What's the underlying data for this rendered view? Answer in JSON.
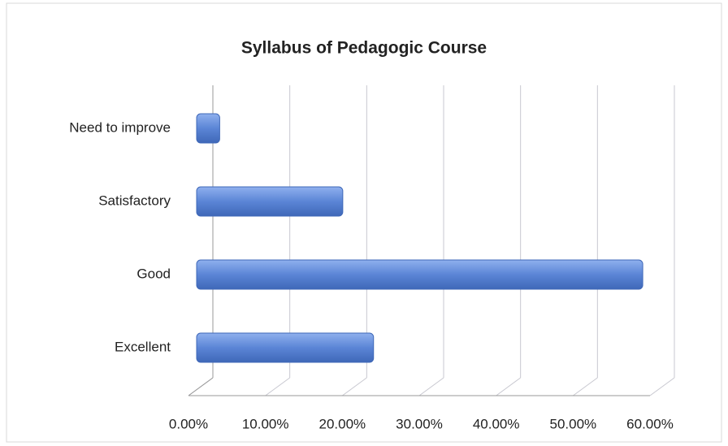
{
  "chart_data": {
    "type": "bar",
    "orientation": "horizontal",
    "title": "Syllabus of Pedagogic Course",
    "categories": [
      "Excellent",
      "Good",
      "Satisfactory",
      "Need to improve"
    ],
    "values": [
      23,
      58,
      19,
      3
    ],
    "color": "#5b85d6",
    "xlim": [
      0,
      60
    ],
    "xticks": [
      {
        "value": 0,
        "label": "0.00%"
      },
      {
        "value": 10,
        "label": "10.00%"
      },
      {
        "value": 20,
        "label": "20.00%"
      },
      {
        "value": 30,
        "label": "30.00%"
      },
      {
        "value": 40,
        "label": "40.00%"
      },
      {
        "value": 50,
        "label": "50.00%"
      },
      {
        "value": 60,
        "label": "60.00%"
      }
    ],
    "grid": true
  }
}
